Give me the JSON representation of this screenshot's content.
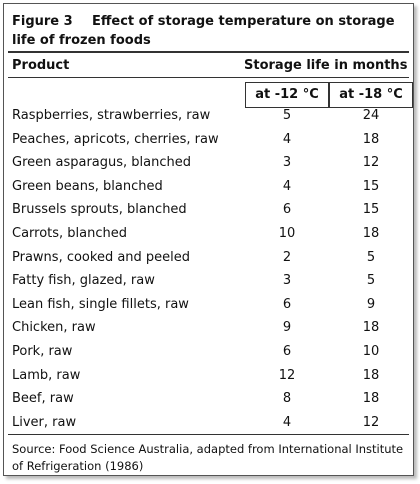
{
  "header": {
    "figure": "Figure 3",
    "title": "Effect of storage temperature on storage life of frozen foods"
  },
  "table": {
    "columns": {
      "product": "Product",
      "group": "Storage life in months",
      "sub": [
        "at -12 °C",
        "at -18 °C"
      ]
    },
    "rows": [
      [
        "Raspberries, strawberries, raw",
        5,
        24
      ],
      [
        "Peaches, apricots, cherries, raw",
        4,
        18
      ],
      [
        "Green asparagus, blanched",
        3,
        12
      ],
      [
        "Green beans, blanched",
        4,
        15
      ],
      [
        "Brussels sprouts, blanched",
        6,
        15
      ],
      [
        "Carrots, blanched",
        10,
        18
      ],
      [
        "Prawns, cooked and peeled",
        2,
        5
      ],
      [
        "Fatty fish, glazed, raw",
        3,
        5
      ],
      [
        "Lean fish, single fillets, raw",
        6,
        9
      ],
      [
        "Chicken, raw",
        9,
        18
      ],
      [
        "Pork, raw",
        6,
        10
      ],
      [
        "Lamb, raw",
        12,
        18
      ],
      [
        "Beef, raw",
        8,
        18
      ],
      [
        "Liver, raw",
        4,
        12
      ]
    ]
  },
  "footer": {
    "source": "Source:    Food Science Australia, adapted from International Institute of Refrigeration (1986)"
  }
}
